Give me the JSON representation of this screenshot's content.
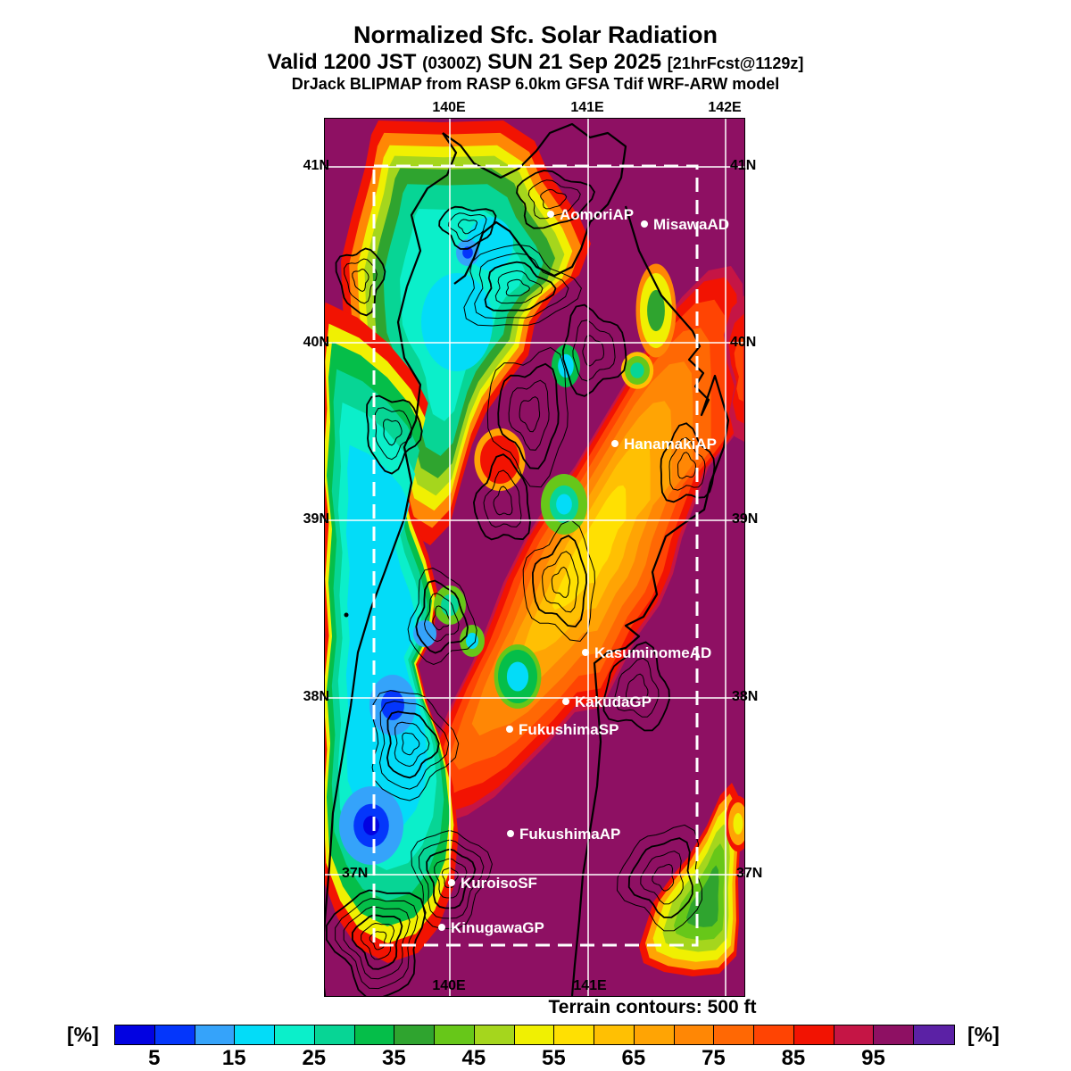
{
  "header": {
    "title": "Normalized Sfc. Solar Radiation",
    "valid_prefix": "Valid 1200 JST",
    "valid_utc": "(0300Z)",
    "valid_date": "SUN 21 Sep 2025",
    "valid_fcst": "[21hrFcst@1129z]",
    "model_line": "DrJack BLIPMAP from RASP 6.0km GFSA Tdif WRF-ARW model"
  },
  "map": {
    "lon_labels_top": [
      "140E",
      "141E",
      "142E"
    ],
    "lon_labels_bottom": [
      "140E",
      "141E"
    ],
    "lat_labels_left": [
      "41N",
      "40N",
      "39N",
      "38N",
      "37N"
    ],
    "lat_labels_right": [
      "41N",
      "40N",
      "39N",
      "38N",
      "37N"
    ],
    "stations": [
      "AomoriAP",
      "MisawaAD",
      "HanamakiAP",
      "KasuminomeAD",
      "KakudaGP",
      "FukushimaSP",
      "FukushimaAP",
      "KuroisoSF",
      "KinugawaGP"
    ],
    "colors": {
      "background": "#8E1063",
      "grid_line": "#FFFFFF",
      "domain_box": "#FFFFFF",
      "coastline": "#000000",
      "terrain_contour": "#000000",
      "station_marker": "#FFFFFF"
    }
  },
  "footer": {
    "terrain_note": "Terrain contours: 500 ft",
    "unit_label_left": "[%]",
    "unit_label_right": "[%]"
  },
  "colorbar": {
    "unit": "%",
    "min": 0,
    "max": 105,
    "segment_step": 5,
    "tick_labels": [
      "5",
      "15",
      "25",
      "35",
      "45",
      "55",
      "65",
      "75",
      "85",
      "95"
    ],
    "segment_colors": [
      "#0202E1",
      "#0436FB",
      "#35A3FA",
      "#03DCF8",
      "#0BEFCA",
      "#07D595",
      "#05BE49",
      "#2FA42F",
      "#67C719",
      "#A5D61D",
      "#F0F002",
      "#FFE002",
      "#FFC003",
      "#FFA404",
      "#FF8705",
      "#FF6804",
      "#FF4403",
      "#F21302",
      "#C51545",
      "#8E1063",
      "#5B21A5"
    ]
  },
  "chart_data": {
    "type": "heatmap",
    "title": "Normalized Sfc. Solar Radiation",
    "units": "%",
    "scale_range": [
      0,
      105
    ],
    "scale_tick_values": [
      5,
      15,
      25,
      35,
      45,
      55,
      65,
      75,
      85,
      95
    ],
    "lon_gridlines_deg_e": [
      140,
      141,
      142
    ],
    "lat_gridlines_deg_n": [
      41,
      40,
      39,
      38,
      37
    ],
    "field_regions_estimated_pct": [
      {
        "region": "background / eastern and southern areas (magenta)",
        "value": "95-100"
      },
      {
        "region": "northwest Aomori blob core (turquoise/cyan)",
        "value": "15-25"
      },
      {
        "region": "northwest blob rim (green-yellow-red rings)",
        "value": "30-90"
      },
      {
        "region": "west coastal strip (cyan/teal)",
        "value": "15-30"
      },
      {
        "region": "deep blue cores southwest interior",
        "value": "0-10"
      },
      {
        "region": "central diagonal band (red/crimson)",
        "value": "80-95"
      },
      {
        "region": "central band core (orange/gold)",
        "value": "55-75"
      },
      {
        "region": "bottom-right offshore wedge (green core)",
        "value": "35-55"
      }
    ],
    "stations_plotted": [
      "AomoriAP",
      "MisawaAD",
      "HanamakiAP",
      "KasuminomeAD",
      "KakudaGP",
      "FukushimaSP",
      "FukushimaAP",
      "KuroisoSF",
      "KinugawaGP"
    ]
  }
}
